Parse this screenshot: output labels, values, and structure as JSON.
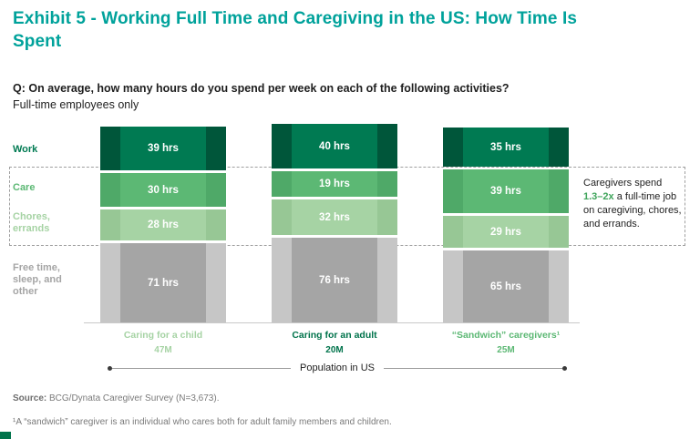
{
  "title": "Exhibit 5 - Working Full Time and Caregiving in the US: How Time Is Spent",
  "question": "Q: On average, how many hours do you spend per week on each of the following activities?",
  "subtitle": "Full-time employees only",
  "chart_data": {
    "type": "bar",
    "stacked": true,
    "orientation": "vertical",
    "units": "hours per week",
    "categories": [
      "Caring for a child",
      "Caring for an adult",
      "“Sandwich” caregivers¹"
    ],
    "category_populations": [
      "47M",
      "20M",
      "25M"
    ],
    "category_colors": [
      "#A6D3A4",
      "#00734B",
      "#5CB874"
    ],
    "xlabel": "Population in US",
    "series": [
      {
        "name": "Work",
        "color": "#007A52",
        "wing_color": "#00563A",
        "values": [
          39,
          40,
          35
        ],
        "display": [
          "39 hrs",
          "40 hrs",
          "35 hrs"
        ]
      },
      {
        "name": "Care",
        "color": "#5CB874",
        "wing_color": "#4FA968",
        "values": [
          30,
          19,
          39
        ],
        "display": [
          "30 hrs",
          "19 hrs",
          "39 hrs"
        ]
      },
      {
        "name": "Chores, errands",
        "color": "#A6D3A4",
        "wing_color": "#97C795",
        "values": [
          28,
          32,
          29
        ],
        "display": [
          "28 hrs",
          "32 hrs",
          "29 hrs"
        ]
      },
      {
        "name": "Free time, sleep, and other",
        "color": "#A5A5A5",
        "wing_color": "#C6C6C6",
        "values": [
          71,
          76,
          65
        ],
        "display": [
          "71 hrs",
          "76 hrs",
          "65 hrs"
        ]
      }
    ],
    "annotation": {
      "prefix": "Caregivers spend ",
      "highlight": "1.3–2x",
      "suffix": " a full-time job on caregiving, chores, and errands.",
      "highlight_color": "#3FA45B"
    }
  },
  "accent_color": "#00734B",
  "source": {
    "label": "Source:",
    "text": " BCG/Dynata Caregiver Survey (N=3,673)."
  },
  "footnote": "¹A “sandwich” caregiver is an individual who cares both for adult family members and children."
}
